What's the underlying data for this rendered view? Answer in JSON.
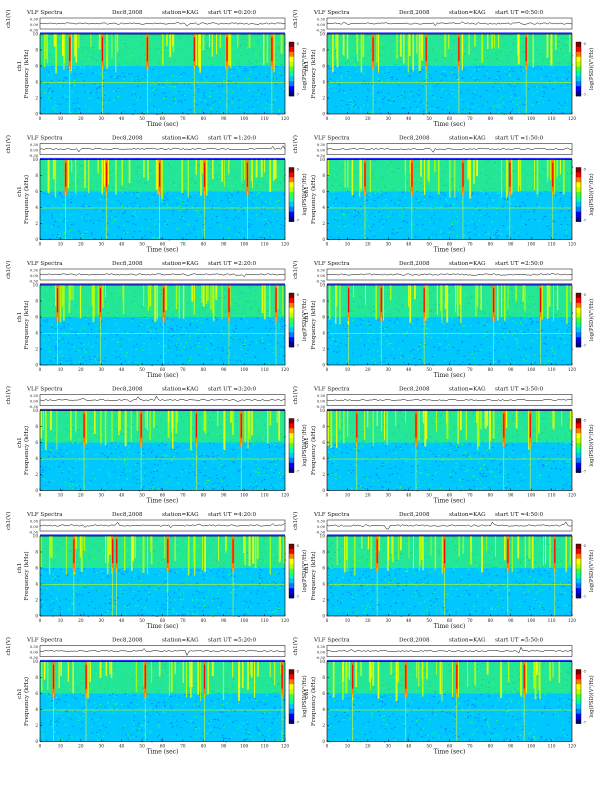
{
  "colors": {
    "background": "#00c8ff",
    "colormap": [
      "#000080",
      "#0000ff",
      "#0080ff",
      "#00c8ff",
      "#00ffa0",
      "#40ff40",
      "#c0ff00",
      "#ffff00",
      "#ff8000",
      "#ff0000",
      "#800000"
    ]
  },
  "chart_data": [
    {
      "type": "heatmap",
      "title_left": "VLF Spectra",
      "date": "Dec8,2008",
      "station": "station=KAG",
      "start": "start UT =0:20:0",
      "trace_label": "ch1(V)",
      "trace_ticks": [
        "0.30",
        "0.00",
        "-0.30"
      ],
      "ylabel": "Frequency (kHz)",
      "ylabel_ch": "ch1",
      "xlabel": "Time (sec)",
      "xlim": [
        0,
        120
      ],
      "ylim": [
        0,
        10
      ],
      "x_ticks": [
        "0",
        "10",
        "20",
        "30",
        "40",
        "50",
        "60",
        "70",
        "80",
        "90",
        "100",
        "110",
        "120"
      ],
      "y_ticks": [
        "0",
        "2",
        "4",
        "6",
        "8",
        "10"
      ],
      "colorbar_label": "log(PSD)(V²/Hz)",
      "colorbar_ticks": [
        "-5",
        "-7"
      ],
      "strong_bursts_sec": [
        14,
        30,
        52,
        75,
        91,
        113
      ]
    },
    {
      "type": "heatmap",
      "title_left": "VLF Spectra",
      "date": "Dec8,2008",
      "station": "station=KAG",
      "start": "start UT =0:50:0",
      "trace_label": "ch1(V)",
      "trace_ticks": [
        "0.30",
        "0.00",
        "-0.30"
      ],
      "ylabel": "Frequency (kHz)",
      "ylabel_ch": "ch1",
      "xlabel": "Time (sec)",
      "xlim": [
        0,
        120
      ],
      "ylim": [
        0,
        10
      ],
      "x_ticks": [
        "0",
        "10",
        "20",
        "30",
        "40",
        "50",
        "60",
        "70",
        "80",
        "90",
        "100",
        "110",
        "120"
      ],
      "y_ticks": [
        "0",
        "2",
        "4",
        "6",
        "8",
        "10"
      ],
      "colorbar_label": "log(PSD)(V²/Hz)",
      "colorbar_ticks": [
        "-5",
        "-7"
      ],
      "strong_bursts_sec": [
        22,
        48,
        64,
        97
      ]
    },
    {
      "type": "heatmap",
      "title_left": "VLF Spectra",
      "date": "Dec8,2008",
      "station": "station=KAG",
      "start": "start UT =1:20:0",
      "trace_label": "ch1(V)",
      "trace_ticks": [
        "0.30",
        "0.00",
        "-0.30"
      ],
      "ylabel": "Frequency (kHz)",
      "ylabel_ch": "ch1",
      "xlabel": "Time (sec)",
      "xlim": [
        0,
        120
      ],
      "ylim": [
        0,
        10
      ],
      "x_ticks": [
        "0",
        "10",
        "20",
        "30",
        "40",
        "50",
        "60",
        "70",
        "80",
        "90",
        "100",
        "110",
        "120"
      ],
      "y_ticks": [
        "0",
        "2",
        "4",
        "6",
        "8",
        "10"
      ],
      "colorbar_label": "log(PSD)(V²/Hz)",
      "colorbar_ticks": [
        "-5",
        "-7"
      ],
      "strong_bursts_sec": [
        12,
        32,
        58,
        80,
        101
      ]
    },
    {
      "type": "heatmap",
      "title_left": "VLF Spectra",
      "date": "Dec8,2008",
      "station": "station=KAG",
      "start": "start UT =1:50:0",
      "trace_label": "ch1(V)",
      "trace_ticks": [
        "0.30",
        "0.00",
        "-0.30"
      ],
      "ylabel": "Frequency (kHz)",
      "ylabel_ch": "ch1",
      "xlabel": "Time (sec)",
      "xlim": [
        0,
        120
      ],
      "ylim": [
        0,
        10
      ],
      "x_ticks": [
        "0",
        "10",
        "20",
        "30",
        "40",
        "50",
        "60",
        "70",
        "80",
        "90",
        "100",
        "110",
        "120"
      ],
      "y_ticks": [
        "0",
        "2",
        "4",
        "6",
        "8",
        "10"
      ],
      "colorbar_label": "log(PSD)(V²/Hz)",
      "colorbar_ticks": [
        "-5",
        "-7"
      ],
      "strong_bursts_sec": [
        18,
        41,
        66,
        89,
        110
      ]
    },
    {
      "type": "heatmap",
      "title_left": "VLF Spectra",
      "date": "Dec8,2008",
      "station": "station=KAG",
      "start": "start UT =2:20:0",
      "trace_label": "ch1(V)",
      "trace_ticks": [
        "0.30",
        "0.00",
        "-0.30"
      ],
      "ylabel": "Frequency (kHz)",
      "ylabel_ch": "ch1",
      "xlabel": "Time (sec)",
      "xlim": [
        0,
        120
      ],
      "ylim": [
        0,
        10
      ],
      "x_ticks": [
        "0",
        "10",
        "20",
        "30",
        "40",
        "50",
        "60",
        "70",
        "80",
        "90",
        "100",
        "110",
        "120"
      ],
      "y_ticks": [
        "0",
        "2",
        "4",
        "6",
        "8",
        "10"
      ],
      "colorbar_label": "log(PSD)(V²/Hz)",
      "colorbar_ticks": [
        "-5",
        "-7"
      ],
      "strong_bursts_sec": [
        8,
        29,
        60,
        92,
        115
      ]
    },
    {
      "type": "heatmap",
      "title_left": "VLF Spectra",
      "date": "Dec8,2008",
      "station": "station=KAG",
      "start": "start UT =2:50:0",
      "trace_label": "ch1(V)",
      "trace_ticks": [
        "0.30",
        "0.00",
        "-0.30"
      ],
      "ylabel": "Frequency (kHz)",
      "ylabel_ch": "ch1",
      "xlabel": "Time (sec)",
      "xlim": [
        0,
        120
      ],
      "ylim": [
        0,
        10
      ],
      "x_ticks": [
        "0",
        "10",
        "20",
        "30",
        "40",
        "50",
        "60",
        "70",
        "80",
        "90",
        "100",
        "110",
        "120"
      ],
      "y_ticks": [
        "0",
        "2",
        "4",
        "6",
        "8",
        "10"
      ],
      "colorbar_label": "log(PSD)(V²/Hz)",
      "colorbar_ticks": [
        "-5",
        "-7"
      ],
      "strong_bursts_sec": [
        10,
        26,
        47,
        81,
        104
      ]
    },
    {
      "type": "heatmap",
      "title_left": "VLF Spectra",
      "date": "Dec8,2008",
      "station": "station=KAG",
      "start": "start UT =3:20:0",
      "trace_label": "ch1(V)",
      "trace_ticks": [
        "0.30",
        "0.00",
        "-0.30"
      ],
      "ylabel": "Frequency (kHz)",
      "ylabel_ch": "ch1",
      "xlabel": "Time (sec)",
      "xlim": [
        0,
        120
      ],
      "ylim": [
        0,
        10
      ],
      "x_ticks": [
        "0",
        "10",
        "20",
        "30",
        "40",
        "50",
        "60",
        "70",
        "80",
        "90",
        "100",
        "110",
        "120"
      ],
      "y_ticks": [
        "0",
        "2",
        "4",
        "6",
        "8",
        "10"
      ],
      "colorbar_label": "log(PSD)(V²/Hz)",
      "colorbar_ticks": [
        "-5",
        "-7"
      ],
      "strong_bursts_sec": [
        21,
        49,
        76,
        98
      ]
    },
    {
      "type": "heatmap",
      "title_left": "VLF Spectra",
      "date": "Dec8,2008",
      "station": "station=KAG",
      "start": "start UT =3:50:0",
      "trace_label": "ch1(V)",
      "trace_ticks": [
        "0.30",
        "0.00",
        "-0.30"
      ],
      "ylabel": "Frequency (kHz)",
      "ylabel_ch": "ch1",
      "xlabel": "Time (sec)",
      "xlim": [
        0,
        120
      ],
      "ylim": [
        0,
        10
      ],
      "x_ticks": [
        "0",
        "10",
        "20",
        "30",
        "40",
        "50",
        "60",
        "70",
        "80",
        "90",
        "100",
        "110",
        "120"
      ],
      "y_ticks": [
        "0",
        "2",
        "4",
        "6",
        "8",
        "10"
      ],
      "colorbar_label": "log(PSD)(V²/Hz)",
      "colorbar_ticks": [
        "-5",
        "-7"
      ],
      "strong_bursts_sec": [
        14,
        43,
        86,
        99
      ]
    },
    {
      "type": "heatmap",
      "title_left": "VLF Spectra",
      "date": "Dec8,2008",
      "station": "station=KAG",
      "start": "start UT =4:20:0",
      "trace_label": "ch1(V)",
      "trace_ticks": [
        "0.30",
        "0.00",
        "-0.30"
      ],
      "ylabel": "Frequency (kHz)",
      "ylabel_ch": "ch1",
      "xlabel": "Time (sec)",
      "xlim": [
        0,
        120
      ],
      "ylim": [
        0,
        10
      ],
      "x_ticks": [
        "0",
        "10",
        "20",
        "30",
        "40",
        "50",
        "60",
        "70",
        "80",
        "90",
        "100",
        "110",
        "120"
      ],
      "y_ticks": [
        "0",
        "2",
        "4",
        "6",
        "8",
        "10"
      ],
      "colorbar_label": "log(PSD)(V²/Hz)",
      "colorbar_ticks": [
        "-5",
        "-7"
      ],
      "strong_bursts_sec": [
        16,
        35,
        37,
        62,
        94
      ]
    },
    {
      "type": "heatmap",
      "title_left": "VLF Spectra",
      "date": "Dec8,2008",
      "station": "station=KAG",
      "start": "start UT =4:50:0",
      "trace_label": "ch1(V)",
      "trace_ticks": [
        "0.30",
        "0.00",
        "-0.30"
      ],
      "ylabel": "Frequency (kHz)",
      "ylabel_ch": "ch1",
      "xlabel": "Time (sec)",
      "xlim": [
        0,
        120
      ],
      "ylim": [
        0,
        10
      ],
      "x_ticks": [
        "0",
        "10",
        "20",
        "30",
        "40",
        "50",
        "60",
        "70",
        "80",
        "90",
        "100",
        "110",
        "120"
      ],
      "y_ticks": [
        "0",
        "2",
        "4",
        "6",
        "8",
        "10"
      ],
      "colorbar_label": "log(PSD)(V²/Hz)",
      "colorbar_ticks": [
        "-5",
        "-7"
      ],
      "strong_bursts_sec": [
        24,
        57,
        88,
        111
      ]
    },
    {
      "type": "heatmap",
      "title_left": "VLF Spectra",
      "date": "Dec8,2008",
      "station": "station=KAG",
      "start": "start UT =5:20:0",
      "trace_label": "ch1(V)",
      "trace_ticks": [
        "0.30",
        "0.00",
        "-0.30"
      ],
      "ylabel": "Frequency (kHz)",
      "ylabel_ch": "ch1",
      "xlabel": "Time (sec)",
      "xlim": [
        0,
        120
      ],
      "ylim": [
        0,
        10
      ],
      "x_ticks": [
        "0",
        "10",
        "20",
        "30",
        "40",
        "50",
        "60",
        "70",
        "80",
        "90",
        "100",
        "110",
        "120"
      ],
      "y_ticks": [
        "0",
        "2",
        "4",
        "6",
        "8",
        "10"
      ],
      "colorbar_label": "log(PSD)(V²/Hz)",
      "colorbar_ticks": [
        "-5",
        "-7"
      ],
      "strong_bursts_sec": [
        6,
        22,
        51,
        80,
        118
      ]
    },
    {
      "type": "heatmap",
      "title_left": "VLF Spectra",
      "date": "Dec8,2008",
      "station": "station=KAG",
      "start": "start UT =5:50:0",
      "trace_label": "ch1(V)",
      "trace_ticks": [
        "0.30",
        "0.00",
        "-0.30"
      ],
      "ylabel": "Frequency (kHz)",
      "ylabel_ch": "ch1",
      "xlabel": "Time (sec)",
      "xlim": [
        0,
        120
      ],
      "ylim": [
        0,
        10
      ],
      "x_ticks": [
        "0",
        "10",
        "20",
        "30",
        "40",
        "50",
        "60",
        "70",
        "80",
        "90",
        "100",
        "110",
        "120"
      ],
      "y_ticks": [
        "0",
        "2",
        "4",
        "6",
        "8",
        "10"
      ],
      "colorbar_label": "log(PSD)(V²/Hz)",
      "colorbar_ticks": [
        "-5",
        "-7"
      ],
      "strong_bursts_sec": [
        12,
        38,
        63,
        96
      ]
    }
  ]
}
